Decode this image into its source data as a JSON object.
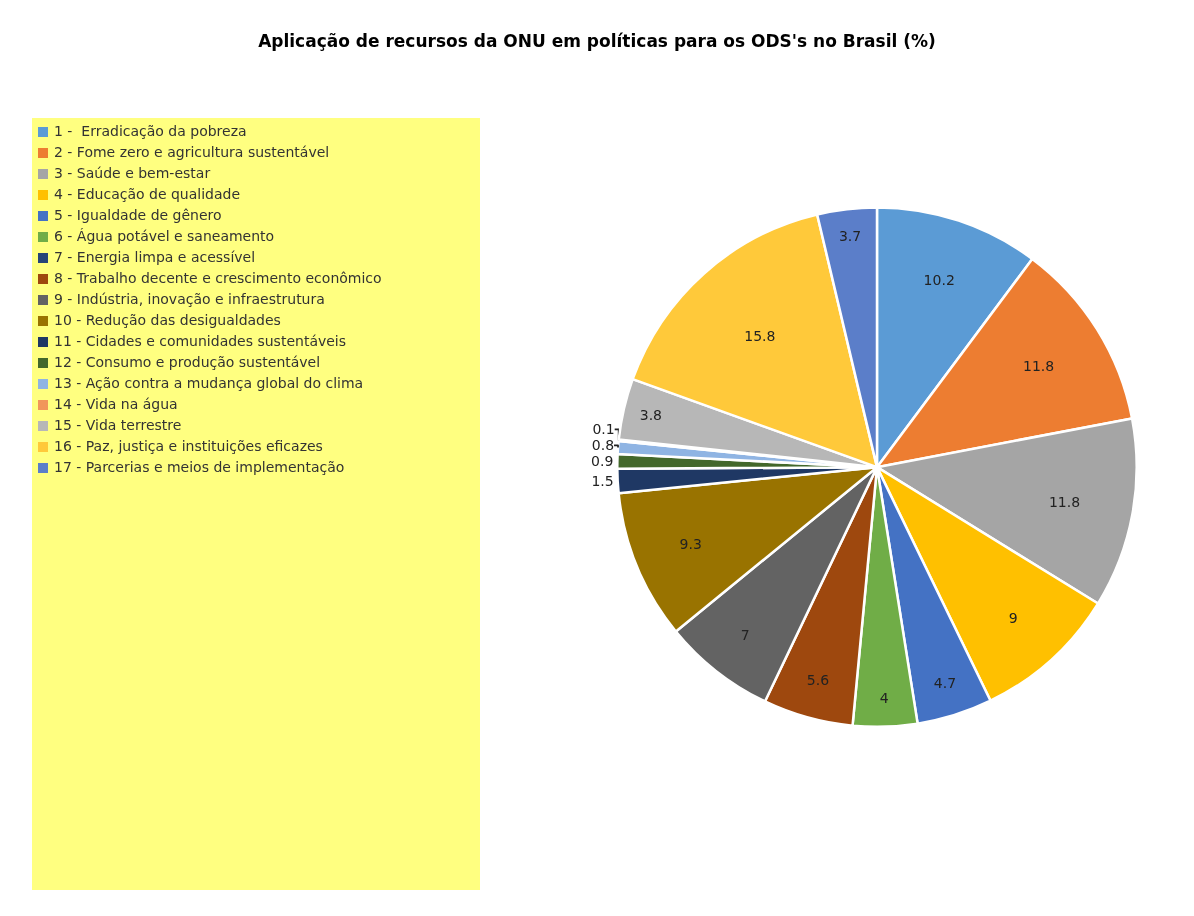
{
  "chart_data": {
    "type": "pie",
    "title": "Aplicação de recursos da ONU em políticas para os ODS's no Brasil (%)",
    "categories": [
      "1 -  Erradicação da pobreza",
      "2 - Fome zero e agricultura sustentável",
      "3 - Saúde e bem-estar",
      "4 - Educação de qualidade",
      "5 - Igualdade de gênero",
      "6 - Água potável e saneamento",
      "7 - Energia limpa e acessível",
      "8 - Trabalho decente e crescimento econômico",
      "9 - Indústria, inovação e infraestrutura",
      "10 - Redução das desigualdades",
      "11 - Cidades e comunidades sustentáveis",
      "12 - Consumo e produção sustentável",
      "13 - Ação contra a mudança global do clima",
      "14 - Vida na água",
      "15 - Vida terrestre",
      "16 - Paz, justiça e instituições eficazes",
      "17 - Parcerias e meios de implementação"
    ],
    "values": [
      10.2,
      11.8,
      11.8,
      9,
      4.7,
      4,
      null,
      5.6,
      7,
      9.3,
      1.5,
      0.9,
      0.8,
      0.1,
      3.8,
      15.8,
      3.7
    ],
    "value_labels": [
      "10.2",
      "11.8",
      "11.8",
      "9",
      "4.7",
      "4",
      null,
      "5.6",
      "7",
      "9.3",
      "1.5",
      "0.9",
      "0.8",
      "0.1",
      "3.8",
      "15.8",
      "3.7"
    ],
    "colors": [
      "#5b9bd5",
      "#ed7d31",
      "#a5a5a5",
      "#ffc000",
      "#4472c4",
      "#70ad47",
      "#264478",
      "#9e480e",
      "#636363",
      "#997300",
      "#1f3864",
      "#43682b",
      "#8fb4e3",
      "#f1975a",
      "#b7b7b7",
      "#ffc93a",
      "#5b7ec9"
    ],
    "legend": "left"
  }
}
